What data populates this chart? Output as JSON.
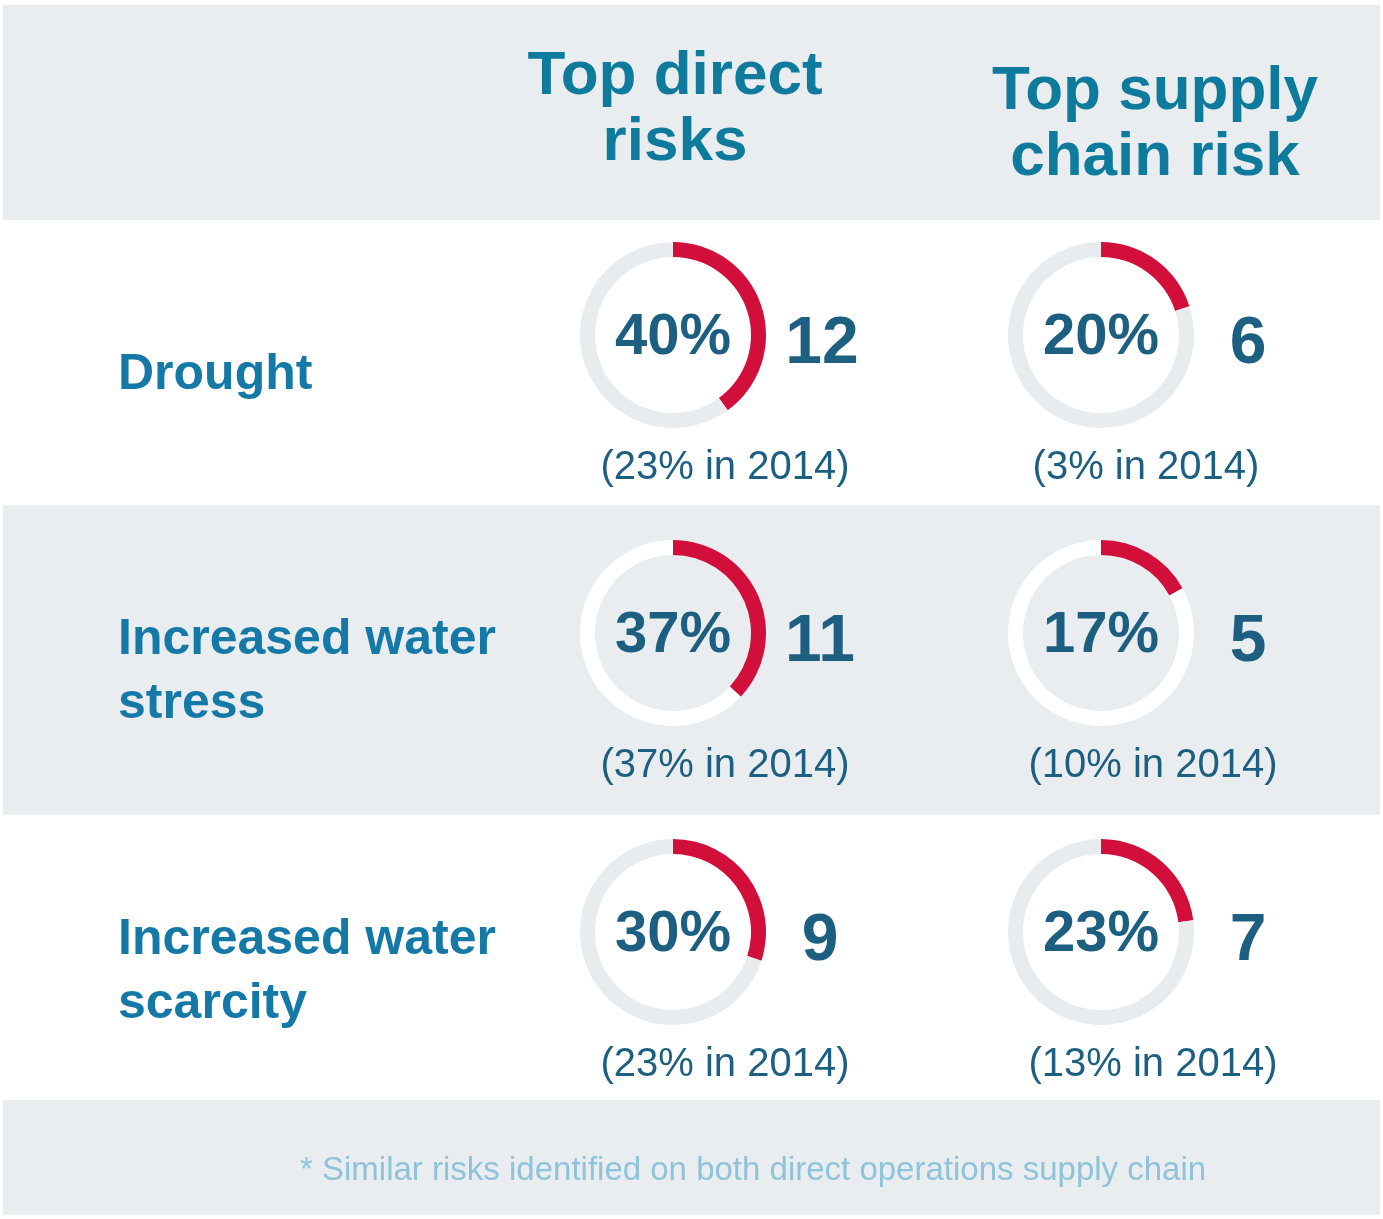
{
  "chart_data": [
    {
      "type": "other",
      "annotations": [
        "Top direct risks",
        "Top supply chain risk",
        "Drought",
        "Increased water stress",
        "Increased water scarcity",
        "* Similar risks identified on both direct operations supply chain"
      ]
    },
    {
      "type": "donut",
      "categories": [
        null,
        null
      ],
      "values": [
        40,
        60
      ],
      "colors": [
        "#d20f3b",
        "#e9ecef"
      ],
      "value_labels": [
        "40%",
        null
      ],
      "annotations": [
        "12",
        "(23% in 2014)"
      ]
    },
    {
      "type": "donut",
      "categories": [
        null,
        null
      ],
      "values": [
        20,
        80
      ],
      "colors": [
        "#d20f3b",
        "#e9ecef"
      ],
      "value_labels": [
        "20%",
        null
      ],
      "annotations": [
        "6",
        "(3% in 2014)"
      ]
    },
    {
      "type": "donut",
      "categories": [
        null,
        null
      ],
      "values": [
        37,
        63
      ],
      "colors": [
        "#d20f3b",
        "#ffffff"
      ],
      "value_labels": [
        "37%",
        null
      ],
      "annotations": [
        "11",
        "(37% in 2014)"
      ]
    },
    {
      "type": "donut",
      "categories": [
        null,
        null
      ],
      "values": [
        17,
        83
      ],
      "colors": [
        "#d20f3b",
        "#ffffff"
      ],
      "value_labels": [
        "17%",
        null
      ],
      "annotations": [
        "5",
        "(10% in 2014)"
      ]
    },
    {
      "type": "donut",
      "categories": [
        null,
        null
      ],
      "values": [
        30,
        70
      ],
      "colors": [
        "#d20f3b",
        "#e9ecef"
      ],
      "value_labels": [
        "30%",
        null
      ],
      "annotations": [
        "9",
        "(23% in 2014)"
      ]
    },
    {
      "type": "donut",
      "categories": [
        null,
        null
      ],
      "values": [
        23,
        77
      ],
      "colors": [
        "#d20f3b",
        "#e9ecef"
      ],
      "value_labels": [
        "23%",
        null
      ],
      "annotations": [
        "7",
        "(13% in 2014)"
      ]
    }
  ]
}
